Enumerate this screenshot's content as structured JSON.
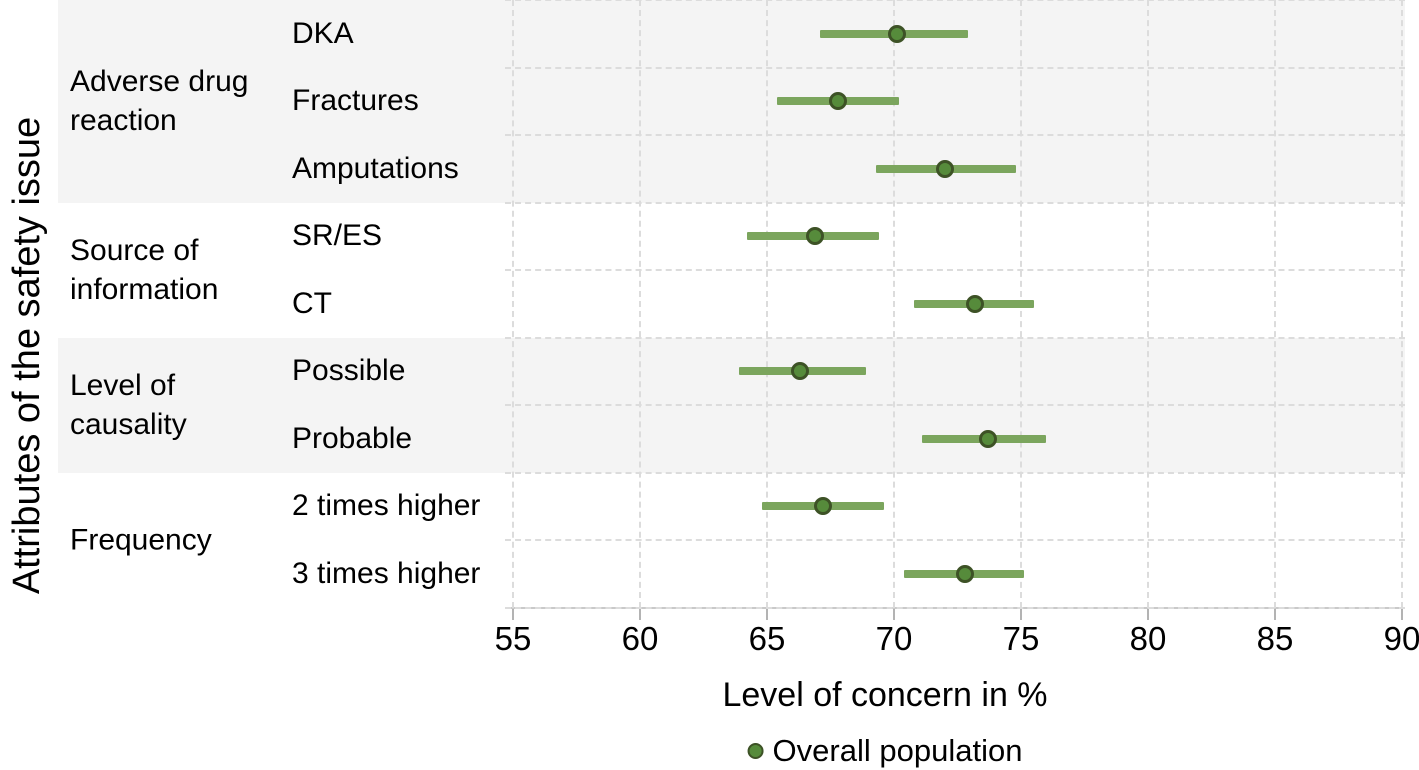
{
  "figure": {
    "ylabel": "Attributes of the safety issue",
    "xlabel": "Level of concern in %",
    "legend_label": "Overall population"
  },
  "colors": {
    "band_shaded": "#f4f4f4",
    "band_plain": "#ffffff",
    "gridline": "#dcdcdc",
    "axis_line": "#c9c9c9",
    "tick_mark": "#b3b3b3",
    "ci_bar": "#7ba55d",
    "dot_fill": "#568b3b",
    "dot_stroke": "#3d5226",
    "text": "#000000"
  },
  "chart_data": {
    "type": "scatter",
    "subtype": "horizontal-dot-plot-with-error-bars",
    "title": "",
    "xlabel": "Level of concern in %",
    "ylabel": "Attributes of the safety issue",
    "xlim": [
      55,
      90
    ],
    "xticks": [
      55,
      60,
      65,
      70,
      75,
      80,
      85,
      90
    ],
    "grid": "dashed, vertical at each tick and horizontal at each row boundary",
    "legend_position": "bottom-center",
    "series": [
      {
        "name": "Overall population",
        "marker": "filled circle with dark outline",
        "color": "#568b3b"
      }
    ],
    "groups": [
      {
        "name": "Adverse drug reaction",
        "label_lines": "Adverse drug\nreaction",
        "rows": 3,
        "shaded": true
      },
      {
        "name": "Source of information",
        "label_lines": "Source of\ninformation",
        "rows": 2,
        "shaded": false
      },
      {
        "name": "Level of causality",
        "label_lines": "Level of\ncausality",
        "rows": 2,
        "shaded": true
      },
      {
        "name": "Frequency",
        "label_lines": "Frequency",
        "rows": 2,
        "shaded": false
      }
    ],
    "rows": [
      {
        "group": "Adverse drug reaction",
        "label": "DKA",
        "value": 70.1,
        "ci_low": 67.1,
        "ci_high": 72.9
      },
      {
        "group": "Adverse drug reaction",
        "label": "Fractures",
        "value": 67.8,
        "ci_low": 65.4,
        "ci_high": 70.2
      },
      {
        "group": "Adverse drug reaction",
        "label": "Amputations",
        "value": 72.0,
        "ci_low": 69.3,
        "ci_high": 74.8
      },
      {
        "group": "Source of information",
        "label": "SR/ES",
        "value": 66.9,
        "ci_low": 64.2,
        "ci_high": 69.4
      },
      {
        "group": "Source of information",
        "label": "CT",
        "value": 73.2,
        "ci_low": 70.8,
        "ci_high": 75.5
      },
      {
        "group": "Level of causality",
        "label": "Possible",
        "value": 66.3,
        "ci_low": 63.9,
        "ci_high": 68.9
      },
      {
        "group": "Level of causality",
        "label": "Probable",
        "value": 73.7,
        "ci_low": 71.1,
        "ci_high": 76.0
      },
      {
        "group": "Frequency",
        "label": "2 times higher",
        "value": 67.2,
        "ci_low": 64.8,
        "ci_high": 69.6
      },
      {
        "group": "Frequency",
        "label": "3 times higher",
        "value": 72.8,
        "ci_low": 70.4,
        "ci_high": 75.1
      }
    ]
  }
}
